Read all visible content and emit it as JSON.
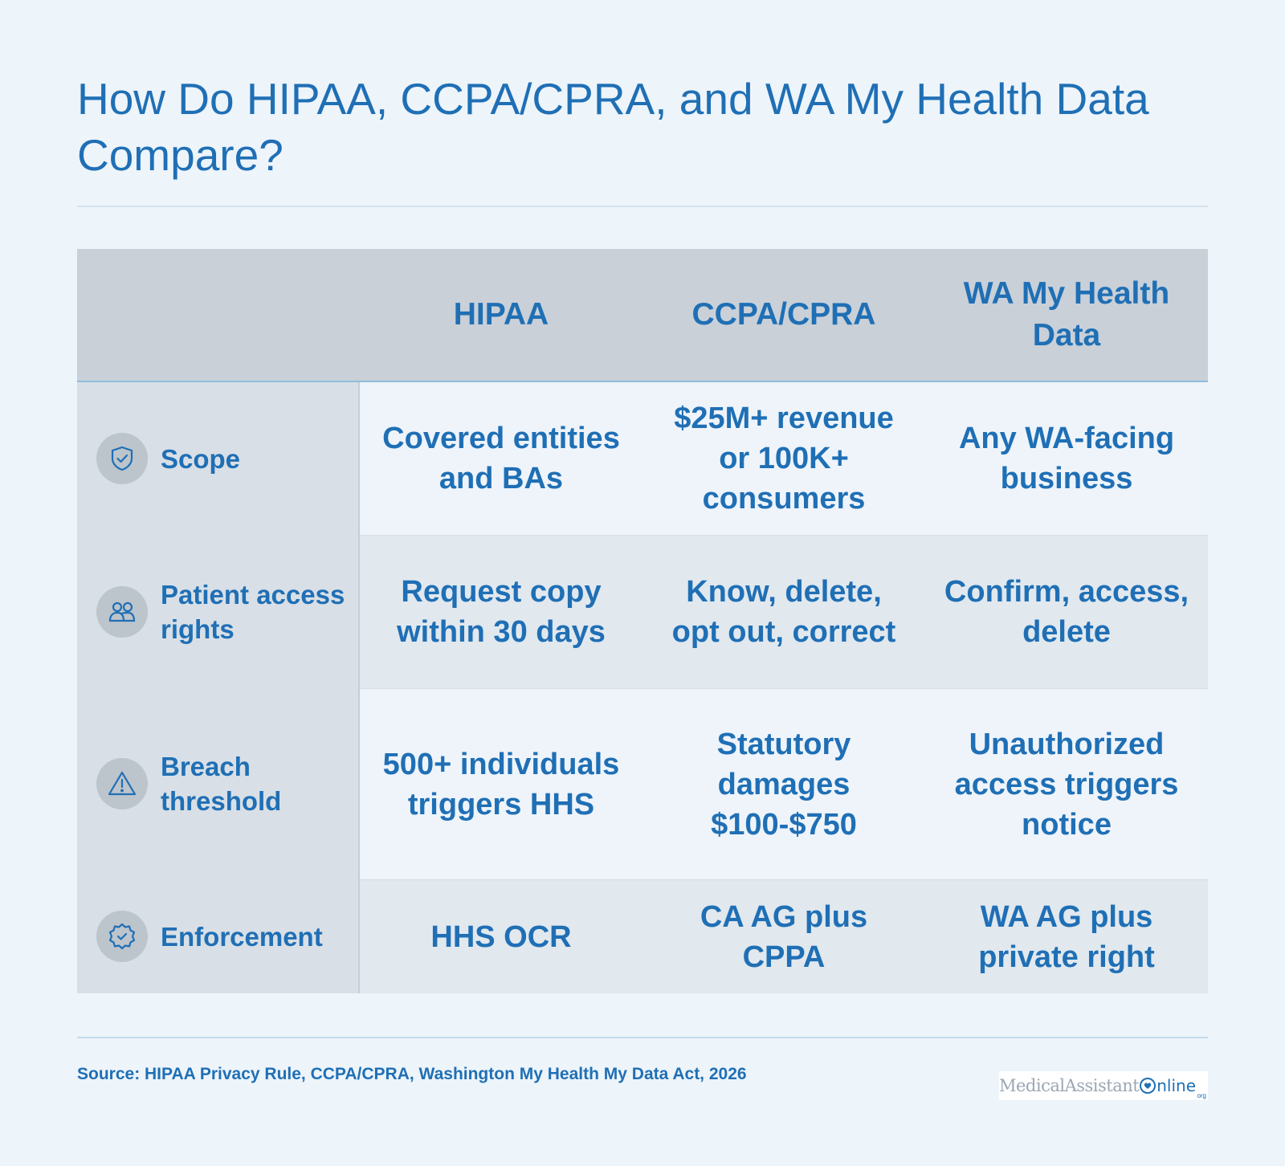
{
  "title": "How Do HIPAA, CCPA/CPRA, and WA My Health Data Compare?",
  "columns": [
    "HIPAA",
    "CCPA/CPRA",
    "WA My Health Data"
  ],
  "rows": [
    {
      "label": "Scope",
      "icon": "shield-check-icon",
      "cells": [
        "Covered entities and BAs",
        "$25M+ revenue or 100K+ consumers",
        "Any WA-facing business"
      ]
    },
    {
      "label": "Patient access rights",
      "icon": "users-icon",
      "cells": [
        "Request copy within 30 days",
        "Know, delete, opt out, correct",
        "Confirm, access, delete"
      ]
    },
    {
      "label": "Breach threshold",
      "icon": "warning-triangle-icon",
      "cells": [
        "500+ individuals triggers HHS",
        "Statutory damages $100-$750",
        "Unauthorized access triggers notice"
      ]
    },
    {
      "label": "Enforcement",
      "icon": "badge-check-icon",
      "cells": [
        "HHS OCR",
        "CA AG plus CPPA",
        "WA AG plus private right"
      ]
    }
  ],
  "source": "Source: HIPAA Privacy Rule, CCPA/CPRA, Washington My Health My Data Act, 2026",
  "logo": {
    "main": "MedicalAssistant",
    "online": "nline",
    "org": "org"
  },
  "colors": {
    "accent": "#1f6fb5",
    "background": "#edf4fa",
    "header": "#c9d0d8"
  }
}
